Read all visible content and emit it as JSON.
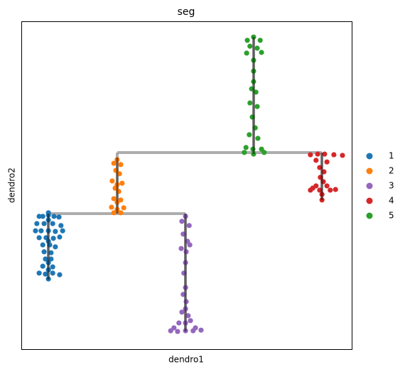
{
  "chart_data": {
    "type": "scatter",
    "title": "seg",
    "x_label": "dendro1",
    "y_label": "dendro2",
    "xlim": [
      0,
      100
    ],
    "ylim": [
      0,
      100
    ],
    "series": [
      {
        "name": "1",
        "color": "#1f77b4",
        "x": [
          5.4,
          6.5,
          8.2,
          9.9,
          11.4,
          4.7,
          6.9,
          9.5,
          12.0,
          4.3,
          6.0,
          8.2,
          10.3,
          12.5,
          5.4,
          7.5,
          9.7,
          11.6,
          6.5,
          8.6,
          10.3,
          6.9,
          9.0,
          7.3,
          9.0,
          6.5,
          9.5,
          5.4,
          7.3,
          9.5,
          11.6,
          8.2,
          8.2,
          8.2,
          8.2,
          8.2,
          8.2
        ],
        "values": [
          40.5,
          40.5,
          40.9,
          40.5,
          40.3,
          38.3,
          38.3,
          38.3,
          37.7,
          36.1,
          36.1,
          36.1,
          35.9,
          36.1,
          34.0,
          34.0,
          33.8,
          34.2,
          31.8,
          31.8,
          31.2,
          29.7,
          29.4,
          27.5,
          27.5,
          25.3,
          25.1,
          23.2,
          22.9,
          23.2,
          22.7,
          21.4,
          41.6,
          39.4,
          32.9,
          26.4,
          24.2
        ]
      },
      {
        "name": "2",
        "color": "#ff7f0e",
        "x": [
          29.0,
          28.0,
          30.1,
          28.6,
          29.7,
          27.5,
          30.5,
          28.4,
          29.5,
          28.0,
          30.1,
          27.3,
          29.0,
          31.0,
          28.0,
          30.1,
          29.0,
          29.0
        ],
        "values": [
          57.8,
          56.7,
          56.3,
          54.5,
          53.5,
          51.3,
          50.6,
          49.1,
          48.1,
          45.9,
          45.5,
          43.3,
          42.6,
          43.1,
          41.6,
          41.6,
          50.2,
          44.8
        ]
      },
      {
        "name": "3",
        "color": "#9467bd",
        "x": [
          49.7,
          48.6,
          50.8,
          49.0,
          50.3,
          48.4,
          49.9,
          51.0,
          49.7,
          49.2,
          49.7,
          49.0,
          49.9,
          48.6,
          50.5,
          47.7,
          51.2,
          46.2,
          52.7,
          45.2,
          47.3,
          49.7,
          52.0,
          54.4,
          49.7,
          49.7
        ],
        "values": [
          40.5,
          39.0,
          37.7,
          35.1,
          32.9,
          30.7,
          29.7,
          31.8,
          26.4,
          23.2,
          18.8,
          16.7,
          14.5,
          11.3,
          10.2,
          8.0,
          8.7,
          6.5,
          6.5,
          5.6,
          5.4,
          5.6,
          5.6,
          5.8,
          8.0,
          12.3
        ]
      },
      {
        "name": "4",
        "color": "#d62728",
        "x": [
          87.5,
          89.7,
          91.8,
          94.6,
          97.2,
          89.2,
          92.5,
          90.3,
          91.6,
          90.5,
          91.4,
          89.2,
          92.5,
          87.5,
          90.3,
          93.5,
          95.1,
          91.0,
          91.0,
          88.2
        ],
        "values": [
          59.3,
          59.5,
          59.5,
          59.3,
          59.1,
          57.6,
          57.1,
          55.4,
          54.1,
          52.4,
          51.1,
          49.8,
          49.8,
          48.5,
          48.5,
          48.5,
          48.7,
          47.2,
          45.5,
          49.1
        ]
      },
      {
        "name": "5",
        "color": "#2ca02c",
        "x": [
          70.3,
          68.4,
          72.3,
          69.2,
          71.4,
          68.2,
          72.7,
          70.3,
          70.3,
          70.3,
          69.7,
          71.0,
          69.2,
          71.4,
          69.9,
          70.8,
          69.0,
          71.6,
          68.0,
          70.1,
          72.7,
          67.5,
          73.5,
          70.3
        ],
        "values": [
          95.2,
          94.2,
          94.2,
          92.4,
          91.8,
          90.3,
          90.5,
          88.1,
          84.8,
          81.6,
          79.4,
          78.4,
          75.1,
          74.0,
          70.8,
          67.5,
          65.4,
          64.3,
          61.5,
          61.0,
          61.0,
          60.0,
          60.0,
          59.5
        ]
      }
    ]
  }
}
